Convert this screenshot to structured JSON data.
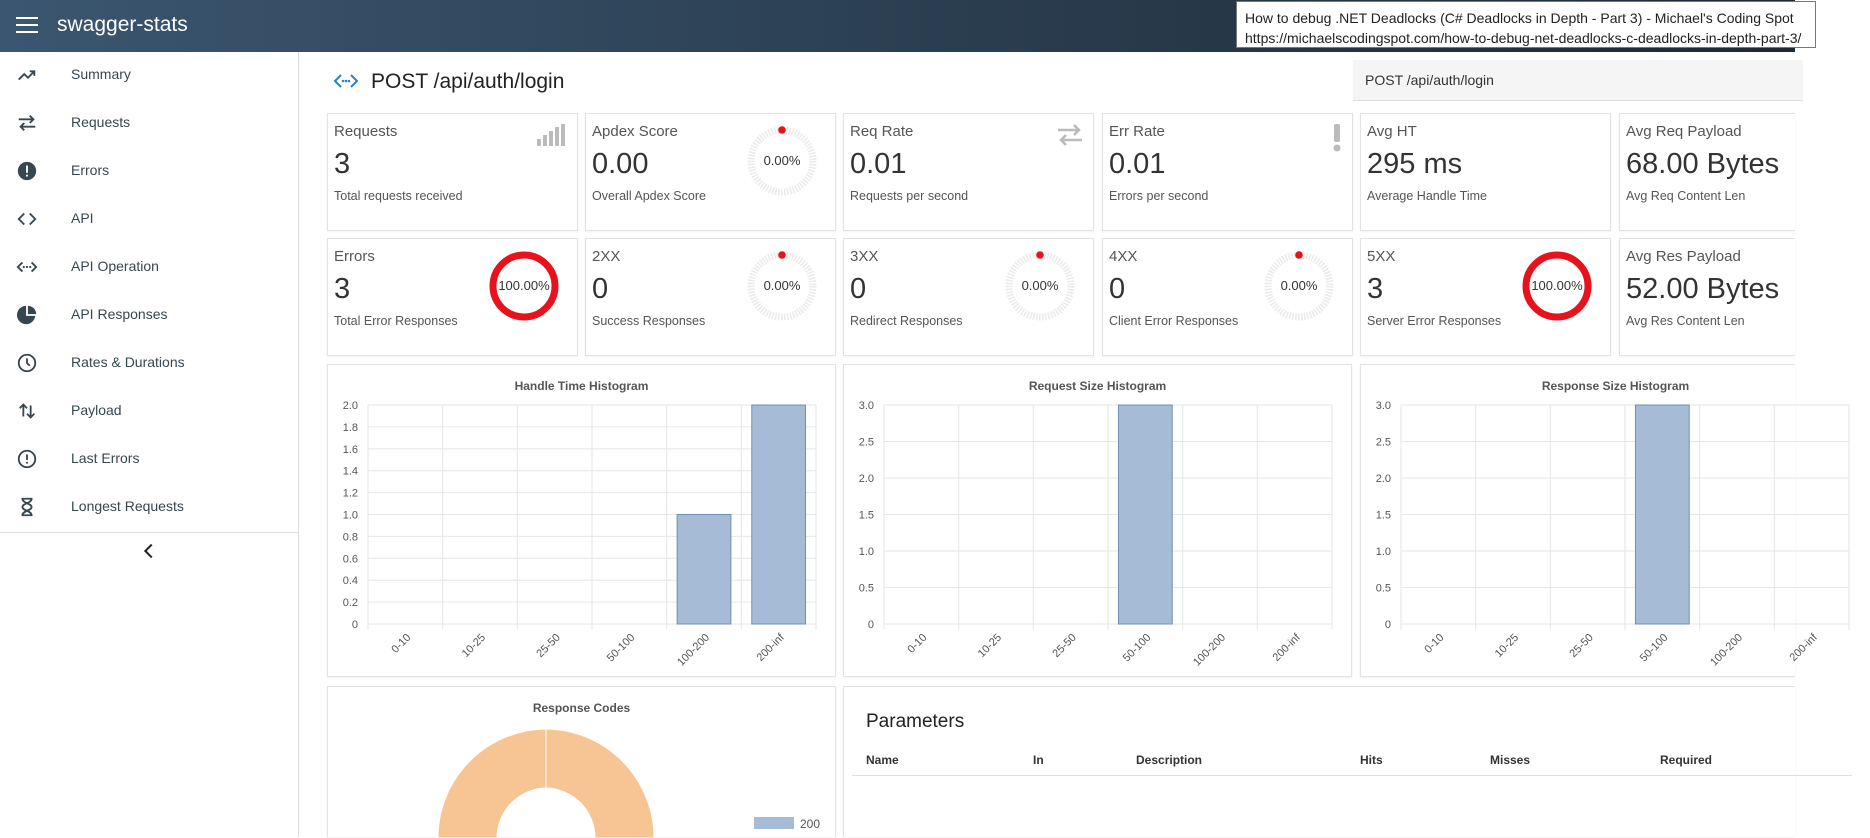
{
  "app": {
    "title": "swagger-stats"
  },
  "tooltip": {
    "line1": "How to debug .NET Deadlocks (C# Deadlocks in Depth - Part 3) - Michael's Coding Spot",
    "line2": "https://michaelscodingspot.com/how-to-debug-net-deadlocks-c-deadlocks-in-depth-part-3/"
  },
  "sidebar": {
    "items": [
      {
        "label": "Summary",
        "icon": "trending-up-icon"
      },
      {
        "label": "Requests",
        "icon": "swap-arrows-icon"
      },
      {
        "label": "Errors",
        "icon": "alert-circle-icon"
      },
      {
        "label": "API",
        "icon": "code-brackets-icon"
      },
      {
        "label": "API Operation",
        "icon": "code-dots-icon"
      },
      {
        "label": "API Responses",
        "icon": "pie-chart-icon"
      },
      {
        "label": "Rates & Durations",
        "icon": "clock-icon"
      },
      {
        "label": "Payload",
        "icon": "up-down-arrows-icon"
      },
      {
        "label": "Last Errors",
        "icon": "alert-outline-icon"
      },
      {
        "label": "Longest Requests",
        "icon": "hourglass-icon"
      }
    ]
  },
  "page": {
    "title": "POST /api/auth/login",
    "selected_operation": "POST /api/auth/login"
  },
  "metrics_row1": [
    {
      "title": "Requests",
      "value": "3",
      "sub": "Total requests received",
      "widget": "signal-icon"
    },
    {
      "title": "Apdex Score",
      "value": "0.00",
      "sub": "Overall Apdex Score",
      "gauge": "0.00%",
      "gauge_fraction": 0
    },
    {
      "title": "Req Rate",
      "value": "0.01",
      "sub": "Requests per second",
      "widget": "swap-arrows-icon"
    },
    {
      "title": "Err Rate",
      "value": "0.01",
      "sub": "Errors per second",
      "widget": "exclamation-icon"
    },
    {
      "title": "Avg HT",
      "value": "295 ms",
      "sub": "Average Handle Time"
    },
    {
      "title": "Avg Req Payload",
      "value": "68.00 Bytes",
      "sub": "Avg Req Content Len"
    }
  ],
  "metrics_row2": [
    {
      "title": "Errors",
      "value": "3",
      "sub": "Total Error Responses",
      "gauge": "100.00%",
      "gauge_fraction": 1
    },
    {
      "title": "2XX",
      "value": "0",
      "sub": "Success Responses",
      "gauge": "0.00%",
      "gauge_fraction": 0
    },
    {
      "title": "3XX",
      "value": "0",
      "sub": "Redirect Responses",
      "gauge": "0.00%",
      "gauge_fraction": 0
    },
    {
      "title": "4XX",
      "value": "0",
      "sub": "Client Error Responses",
      "gauge": "0.00%",
      "gauge_fraction": 0
    },
    {
      "title": "5XX",
      "value": "3",
      "sub": "Server Error Responses",
      "gauge": "100.00%",
      "gauge_fraction": 1
    },
    {
      "title": "Avg Res Payload",
      "value": "52.00 Bytes",
      "sub": "Avg Res Content Len"
    }
  ],
  "colors": {
    "bar_fill": "#a6bcd6",
    "bar_stroke": "#6f8fb5",
    "gauge_red": "#e8121c",
    "gauge_track": "#ebebeb",
    "donut_fill": "#f7c493",
    "legend_200": "#a6bcd6"
  },
  "chart_data": [
    {
      "type": "bar",
      "title": "Handle Time Histogram",
      "categories": [
        "0-10",
        "10-25",
        "25-50",
        "50-100",
        "100-200",
        "200-inf"
      ],
      "values": [
        0,
        0,
        0,
        0,
        1,
        2
      ],
      "ylim": [
        0,
        2
      ],
      "yticks": [
        "0",
        "0.2",
        "0.4",
        "0.6",
        "0.8",
        "1.0",
        "1.2",
        "1.4",
        "1.6",
        "1.8",
        "2.0"
      ],
      "grid": true
    },
    {
      "type": "bar",
      "title": "Request Size Histogram",
      "categories": [
        "0-10",
        "10-25",
        "25-50",
        "50-100",
        "100-200",
        "200-inf"
      ],
      "values": [
        0,
        0,
        0,
        3,
        0,
        0
      ],
      "ylim": [
        0,
        3
      ],
      "yticks": [
        "0",
        "0.5",
        "1.0",
        "1.5",
        "2.0",
        "2.5",
        "3.0"
      ],
      "grid": true
    },
    {
      "type": "bar",
      "title": "Response Size Histogram",
      "categories": [
        "0-10",
        "10-25",
        "25-50",
        "50-100",
        "100-200",
        "200-inf"
      ],
      "values": [
        0,
        0,
        0,
        3,
        0,
        0
      ],
      "ylim": [
        0,
        3
      ],
      "yticks": [
        "0",
        "0.5",
        "1.0",
        "1.5",
        "2.0",
        "2.5",
        "3.0"
      ],
      "grid": true
    },
    {
      "type": "pie",
      "title": "Response Codes",
      "legend": [
        "200"
      ],
      "legend_placement": "right",
      "visible_slice_color": "#f7c493"
    }
  ],
  "params": {
    "title": "Parameters",
    "columns": [
      "Name",
      "In",
      "Description",
      "Hits",
      "Misses",
      "Required"
    ]
  }
}
